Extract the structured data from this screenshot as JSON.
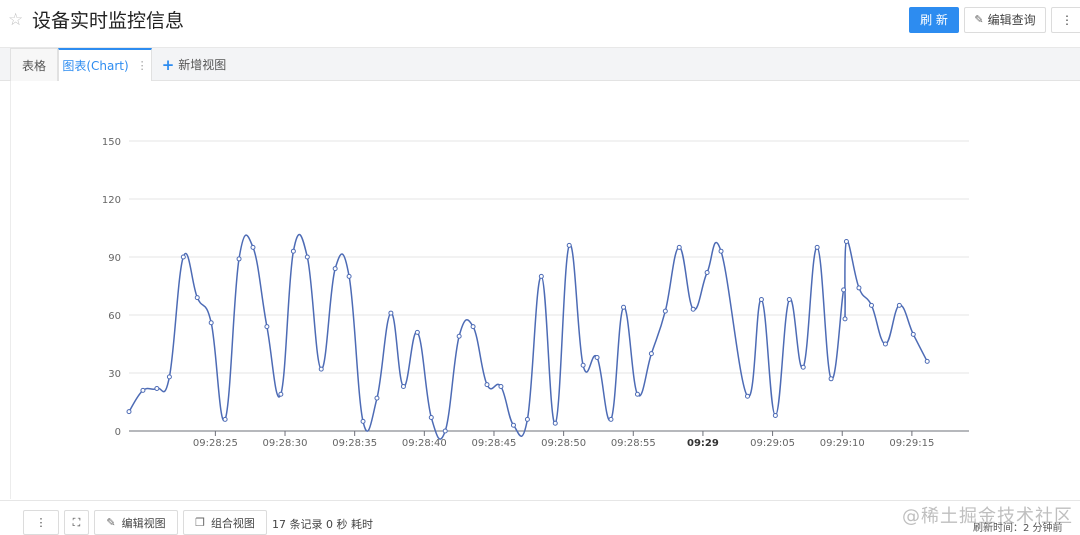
{
  "header": {
    "title": "设备实时监控信息",
    "refresh_label": "刷 新",
    "edit_query_label": "编辑查询",
    "more_label": "⋮"
  },
  "tabs": {
    "table_label": "表格",
    "chart_label": "图表(Chart)",
    "chart_menu": "⋮",
    "add_label": "新增视图"
  },
  "footer": {
    "more_label": "⋮",
    "expand_label": "⛶",
    "edit_view_label": "编辑视图",
    "combo_view_label": "组合视图",
    "records": "17 条记录 0 秒 耗时",
    "refresh_time": "刷新时间：2 分钟前",
    "watermark": "@稀土掘金技术社区"
  },
  "colors": {
    "accent": "#2d8cf0",
    "line": "#4d6bb5"
  },
  "chart_data": {
    "type": "line",
    "ylim": [
      0,
      150
    ],
    "yticks": [
      0,
      30,
      60,
      90,
      120,
      150
    ],
    "x_ticks": [
      {
        "t": 25,
        "label": "09:28:25",
        "bold": false
      },
      {
        "t": 30,
        "label": "09:28:30",
        "bold": false
      },
      {
        "t": 35,
        "label": "09:28:35",
        "bold": false
      },
      {
        "t": 40,
        "label": "09:28:40",
        "bold": false
      },
      {
        "t": 45,
        "label": "09:28:45",
        "bold": false
      },
      {
        "t": 50,
        "label": "09:28:50",
        "bold": false
      },
      {
        "t": 55,
        "label": "09:28:55",
        "bold": false
      },
      {
        "t": 60,
        "label": "09:29",
        "bold": true
      },
      {
        "t": 65,
        "label": "09:29:05",
        "bold": false
      },
      {
        "t": 70,
        "label": "09:29:10",
        "bold": false
      },
      {
        "t": 75,
        "label": "09:29:15",
        "bold": false
      }
    ],
    "xlim": [
      18.8,
      79.1
    ],
    "series": [
      {
        "points": [
          [
            18.8,
            10
          ],
          [
            19.8,
            21
          ],
          [
            20.8,
            22
          ],
          [
            21.7,
            28
          ],
          [
            22.7,
            90
          ],
          [
            23.7,
            69
          ],
          [
            24.7,
            56
          ],
          [
            25.7,
            6
          ],
          [
            26.7,
            89
          ],
          [
            27.7,
            95
          ],
          [
            28.7,
            54
          ],
          [
            29.7,
            19
          ],
          [
            30.6,
            93
          ],
          [
            31.6,
            90
          ],
          [
            32.6,
            32
          ],
          [
            33.6,
            84
          ],
          [
            34.6,
            80
          ],
          [
            35.6,
            5
          ],
          [
            36.6,
            17
          ],
          [
            37.6,
            61
          ],
          [
            38.5,
            23
          ],
          [
            39.5,
            51
          ],
          [
            40.5,
            7
          ],
          [
            41.5,
            0
          ],
          [
            42.5,
            49
          ],
          [
            43.5,
            54
          ],
          [
            44.5,
            24
          ],
          [
            45.5,
            23
          ],
          [
            46.4,
            3
          ],
          [
            47.4,
            6
          ],
          [
            48.4,
            80
          ],
          [
            49.4,
            4
          ],
          [
            50.4,
            96
          ],
          [
            51.4,
            34
          ],
          [
            52.4,
            38
          ],
          [
            53.4,
            6
          ],
          [
            54.3,
            64
          ],
          [
            55.3,
            19
          ],
          [
            56.3,
            40
          ],
          [
            57.3,
            62
          ],
          [
            58.3,
            95
          ],
          [
            59.3,
            63
          ],
          [
            60.3,
            82
          ],
          [
            61.3,
            93
          ],
          [
            63.2,
            18
          ],
          [
            64.2,
            68
          ],
          [
            65.2,
            8
          ],
          [
            66.2,
            68
          ],
          [
            67.2,
            33
          ],
          [
            68.2,
            95
          ],
          [
            69.2,
            27
          ],
          [
            70.1,
            73
          ],
          [
            70.2,
            58
          ],
          [
            70.3,
            98
          ],
          [
            71.2,
            74
          ],
          [
            72.1,
            65
          ],
          [
            73.1,
            45
          ],
          [
            74.1,
            65
          ],
          [
            75.1,
            50
          ],
          [
            76.1,
            36
          ]
        ]
      }
    ]
  }
}
